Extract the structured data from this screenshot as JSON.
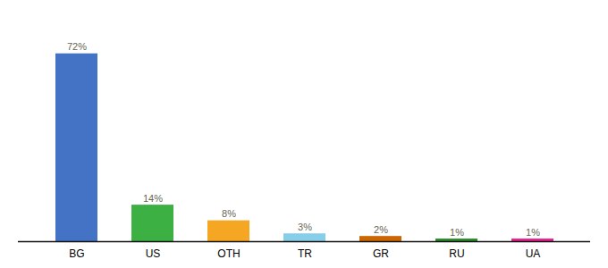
{
  "chart_data": {
    "type": "bar",
    "categories": [
      "BG",
      "US",
      "OTH",
      "TR",
      "GR",
      "RU",
      "UA"
    ],
    "values": [
      72,
      14,
      8,
      3,
      2,
      1,
      1
    ],
    "value_labels": [
      "72%",
      "14%",
      "8%",
      "3%",
      "2%",
      "1%",
      "1%"
    ],
    "colors": [
      "#4472c4",
      "#3cb043",
      "#f5a623",
      "#87ceeb",
      "#cc6600",
      "#2a8a2a",
      "#e91e8c"
    ],
    "ylim": [
      0,
      84.24
    ],
    "data_labels": true,
    "tick_labels": "x",
    "grid": false
  }
}
